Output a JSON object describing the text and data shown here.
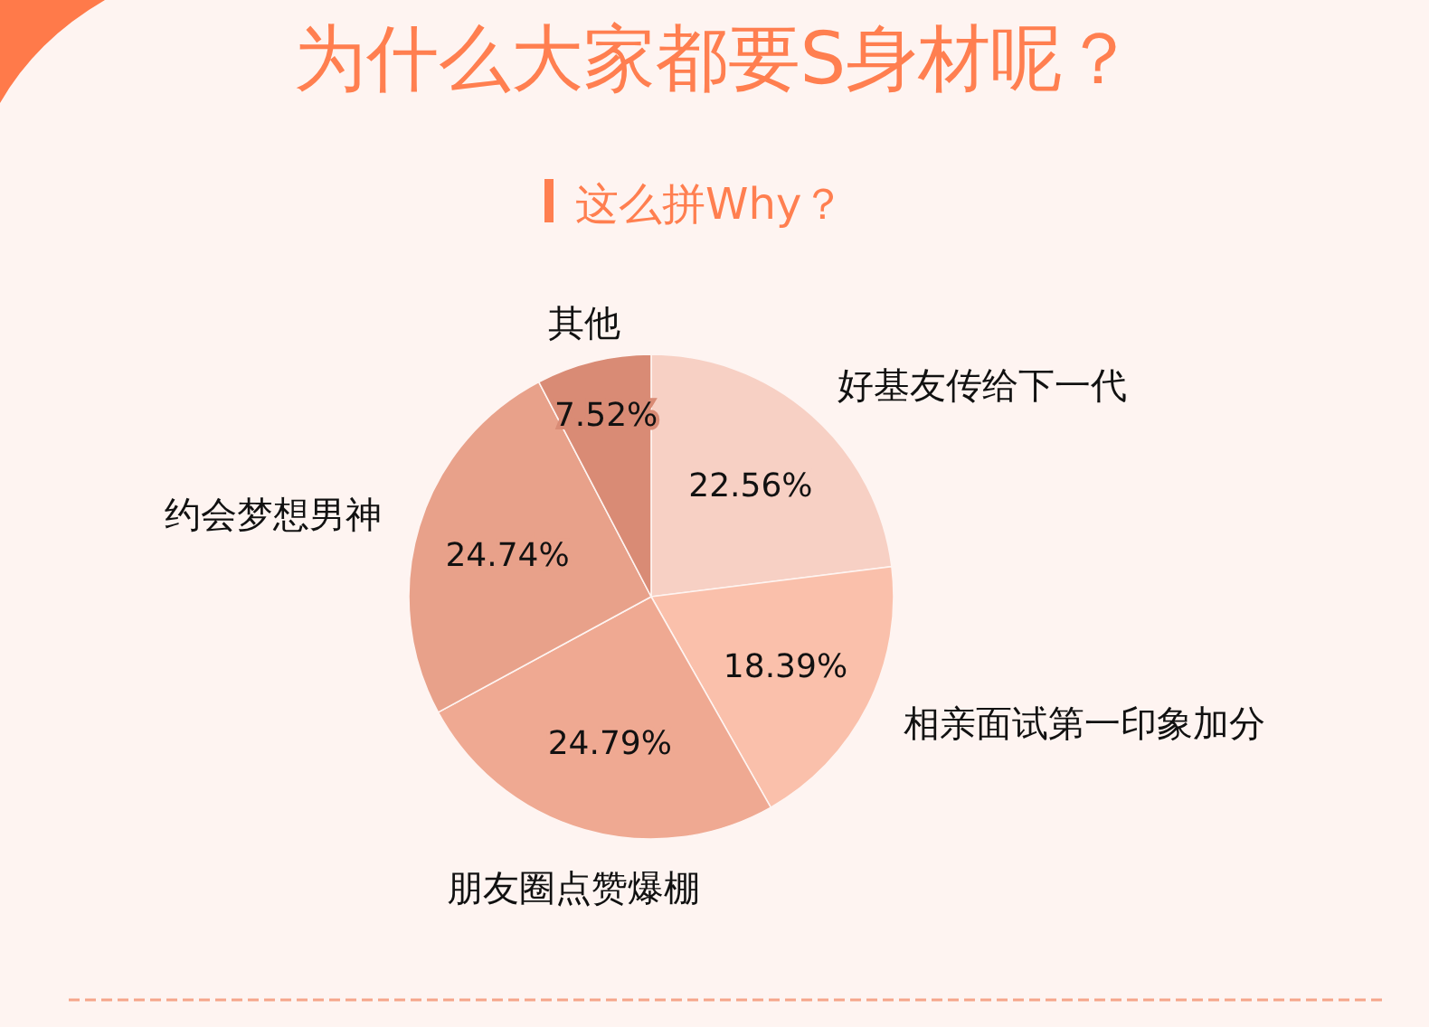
{
  "chart_data": {
    "type": "pie",
    "title": "为什么大家都要S身材呢？",
    "subtitle": "这么拼Why？",
    "categories": [
      "好基友传给下一代",
      "相亲面试第一印象加分",
      "朋友圈点赞爆棚",
      "约会梦想男神",
      "其他"
    ],
    "values": [
      22.56,
      18.39,
      24.79,
      24.74,
      7.52
    ],
    "colors": [
      "#f7d0c4",
      "#fac0ab",
      "#efa992",
      "#e8a18a",
      "#d98b75"
    ],
    "value_labels": [
      "22.56%",
      "18.39%",
      "24.79%",
      "24.74%",
      "7.52%"
    ]
  }
}
